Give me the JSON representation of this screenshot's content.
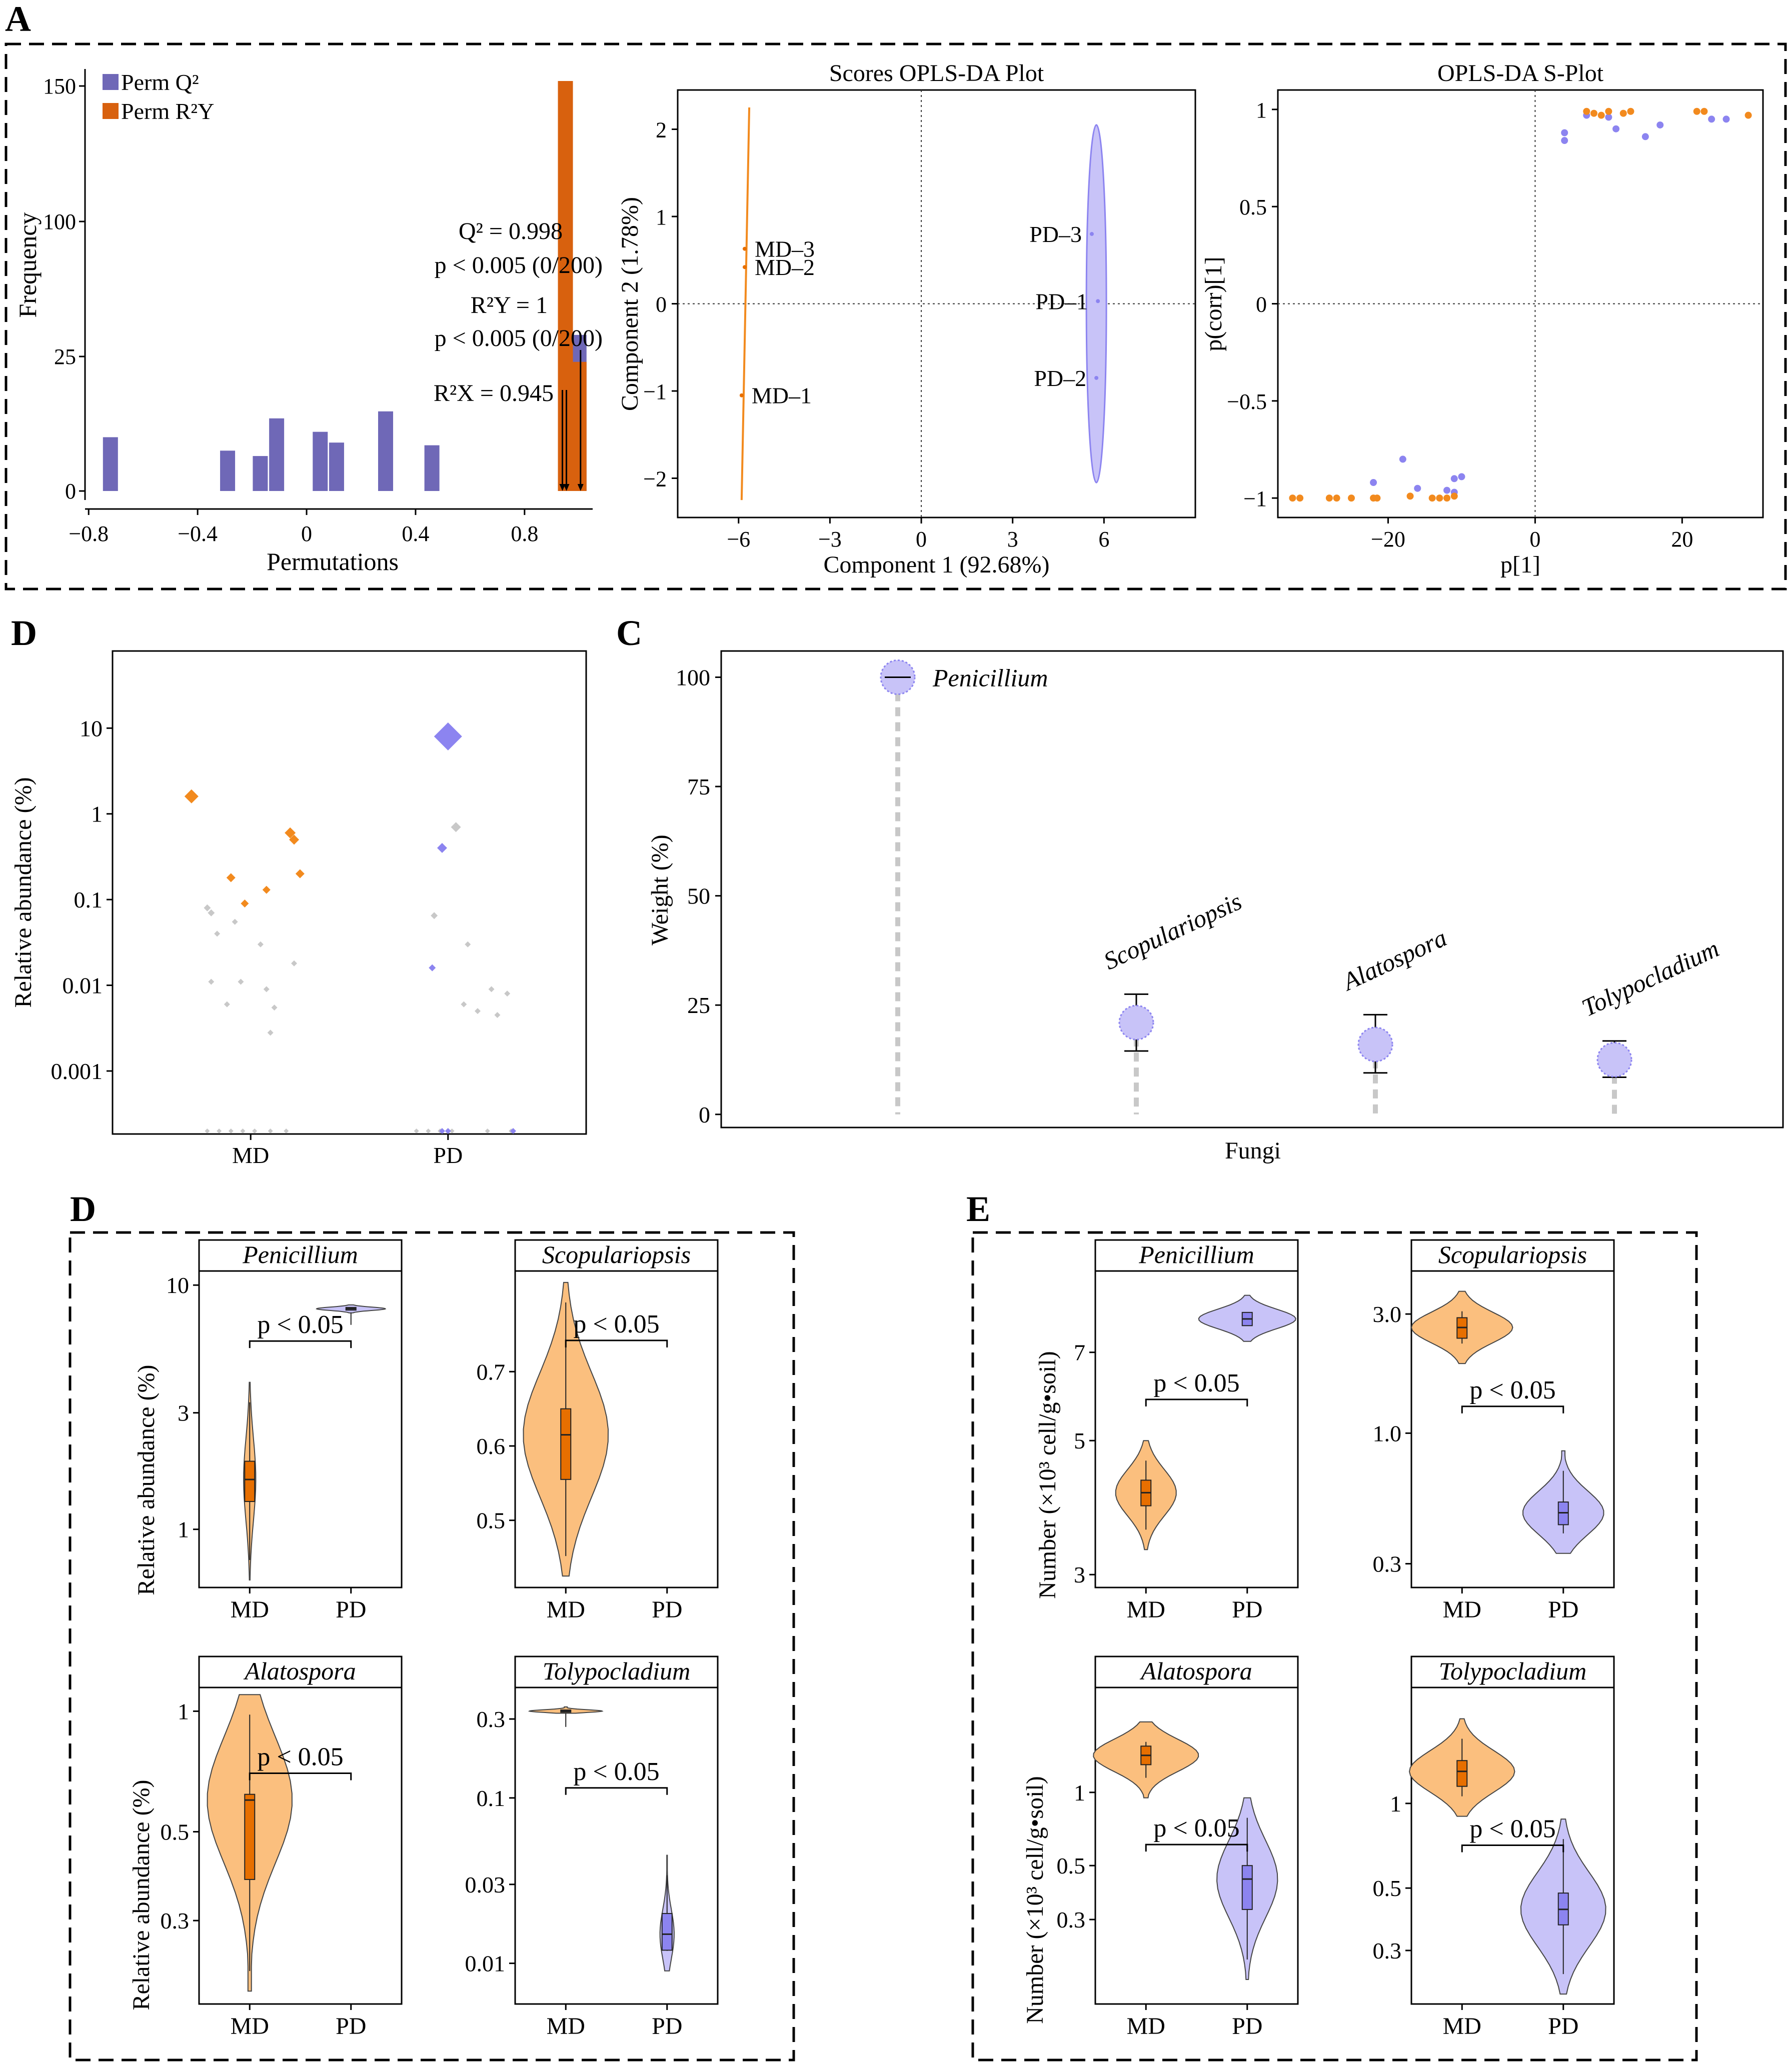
{
  "colors": {
    "md": "#F28A1E",
    "md_fill": "#FBBF7E",
    "md_dark": "#E76F00",
    "pd": "#8C84F0",
    "pd_fill": "#C8C3F8",
    "perm_q2": "#6F68B7",
    "perm_r2y": "#D8610E",
    "grey": "#C8C8C8"
  },
  "panel_labels": {
    "a": "A",
    "d_top": "D",
    "c": "C",
    "d_bottom": "D",
    "e": "E"
  },
  "chart_data": [
    {
      "id": "permutation-histogram",
      "type": "bar",
      "xlabel": "Permutations",
      "ylabel": "Frequency",
      "xlim": [
        -0.85,
        1.05
      ],
      "xticks": [
        "−0.8",
        "−0.4",
        "0",
        "0.4",
        "0.8"
      ],
      "xtick_values": [
        -0.8,
        -0.4,
        0,
        0.4,
        0.8
      ],
      "yticks": [
        "0",
        "25",
        "100",
        "150"
      ],
      "ytick_values": [
        0,
        25,
        100,
        150
      ],
      "legend": [
        "Perm Q²",
        "Perm R²Y"
      ],
      "q2_bars": [
        {
          "x": -0.72,
          "h": 10
        },
        {
          "x": -0.29,
          "h": 7.5
        },
        {
          "x": -0.17,
          "h": 6.5
        },
        {
          "x": -0.11,
          "h": 13.5
        },
        {
          "x": 0.05,
          "h": 11
        },
        {
          "x": 0.11,
          "h": 9
        },
        {
          "x": 0.29,
          "h": 14.8
        },
        {
          "x": 0.46,
          "h": 8.5
        },
        {
          "x": 1.0,
          "h": 37
        }
      ],
      "r2y_bars": [
        {
          "x": 0.95,
          "h": 152
        },
        {
          "x": 1.0,
          "h": 24
        }
      ],
      "annotations": [
        {
          "line1": "Q² = 0.998",
          "line2": "p < 0.005 (0/200)"
        },
        {
          "line1": "R²Y = 1",
          "line2": "p < 0.005 (0/200)"
        },
        {
          "line1": "R²X = 0.945"
        }
      ]
    },
    {
      "id": "opls-da-scores",
      "type": "scatter",
      "title": "Scores OPLS-DA Plot",
      "xlabel": "Component 1 (92.68%)",
      "ylabel": "Component 2 (1.78%)",
      "xlim": [
        -8.0,
        9.0
      ],
      "ylim": [
        -2.45,
        2.45
      ],
      "xticks": [
        "−6",
        "−3",
        "0",
        "3",
        "6"
      ],
      "xtick_values": [
        -6,
        -3,
        0,
        3,
        6
      ],
      "yticks": [
        "−2",
        "−1",
        "0",
        "1",
        "2"
      ],
      "ytick_values": [
        -2,
        -1,
        0,
        1,
        2
      ],
      "points": [
        {
          "label": "MD–3",
          "x": -5.8,
          "y": 0.63,
          "group": "MD"
        },
        {
          "label": "MD–2",
          "x": -5.8,
          "y": 0.42,
          "group": "MD"
        },
        {
          "label": "MD–1",
          "x": -5.9,
          "y": -1.05,
          "group": "MD"
        },
        {
          "label": "PD–3",
          "x": 5.6,
          "y": 0.8,
          "group": "PD"
        },
        {
          "label": "PD–1",
          "x": 5.8,
          "y": 0.03,
          "group": "PD"
        },
        {
          "label": "PD–2",
          "x": 5.75,
          "y": -0.85,
          "group": "PD"
        }
      ]
    },
    {
      "id": "opls-da-s-plot",
      "type": "scatter",
      "title": "OPLS-DA S-Plot",
      "xlabel": "p[1]",
      "ylabel": "p(corr)[1]",
      "xlim": [
        -35,
        31
      ],
      "ylim": [
        -1.1,
        1.1
      ],
      "xticks": [
        "−20",
        "0",
        "20"
      ],
      "xtick_values": [
        -20,
        0,
        20
      ],
      "yticks": [
        "−1",
        "−0.5",
        "0",
        "0.5",
        "1"
      ],
      "ytick_values": [
        -1,
        -0.5,
        0,
        0.5,
        1
      ],
      "orange_points": [
        [
          -33,
          -1
        ],
        [
          -32,
          -1
        ],
        [
          -28,
          -1
        ],
        [
          -27,
          -1
        ],
        [
          -25,
          -1
        ],
        [
          -22,
          -1
        ],
        [
          -21.5,
          -1
        ],
        [
          -17,
          -0.99
        ],
        [
          -14,
          -1
        ],
        [
          -13,
          -1
        ],
        [
          -12,
          -1
        ],
        [
          -11,
          -0.99
        ],
        [
          7,
          0.99
        ],
        [
          8,
          0.98
        ],
        [
          9,
          0.97
        ],
        [
          10,
          0.99
        ],
        [
          12,
          0.98
        ],
        [
          13,
          0.99
        ],
        [
          22,
          0.99
        ],
        [
          23,
          0.99
        ],
        [
          29,
          0.97
        ]
      ],
      "purple_points": [
        [
          -22,
          -0.92
        ],
        [
          -18,
          -0.8
        ],
        [
          -16,
          -0.95
        ],
        [
          -12,
          -0.96
        ],
        [
          -11,
          -0.9
        ],
        [
          -10,
          -0.89
        ],
        [
          -11,
          -0.97
        ],
        [
          4,
          0.84
        ],
        [
          4,
          0.88
        ],
        [
          7,
          0.97
        ],
        [
          10,
          0.96
        ],
        [
          11,
          0.9
        ],
        [
          15,
          0.86
        ],
        [
          17,
          0.92
        ],
        [
          24,
          0.95
        ],
        [
          26,
          0.95
        ]
      ]
    },
    {
      "id": "relative-abundance-scatter",
      "type": "scatter",
      "ylabel": "Relative abundance (%)",
      "categories": [
        "MD",
        "PD"
      ],
      "y_scale": "log10",
      "ylim_log": [
        -3.7,
        1.9
      ],
      "yticks": [
        "10",
        "1",
        "0.1",
        "0.01",
        "0.001"
      ],
      "ytick_values": [
        10,
        1,
        0.1,
        0.01,
        0.001
      ],
      "md_colored": [
        {
          "x": 0.7,
          "y": 1.6,
          "s": 14
        },
        {
          "x": 1.2,
          "y": 0.6,
          "s": 11
        },
        {
          "x": 1.22,
          "y": 0.5,
          "s": 10
        },
        {
          "x": 1.25,
          "y": 0.2,
          "s": 9
        },
        {
          "x": 0.9,
          "y": 0.18,
          "s": 9
        },
        {
          "x": 1.08,
          "y": 0.13,
          "s": 8
        },
        {
          "x": 0.97,
          "y": 0.09,
          "s": 8
        }
      ],
      "pd_colored": [
        {
          "x": 2.0,
          "y": 8.0,
          "s": 28
        },
        {
          "x": 1.97,
          "y": 0.4,
          "s": 10
        },
        {
          "x": 1.92,
          "y": 0.016,
          "s": 7
        }
      ],
      "grey_points": [
        [
          0.78,
          0.08,
          7
        ],
        [
          0.8,
          0.07,
          7
        ],
        [
          0.83,
          0.04,
          6
        ],
        [
          0.92,
          0.055,
          6
        ],
        [
          1.05,
          0.03,
          6
        ],
        [
          1.22,
          0.018,
          6
        ],
        [
          0.8,
          0.011,
          6
        ],
        [
          0.95,
          0.011,
          6
        ],
        [
          1.08,
          0.009,
          6
        ],
        [
          1.12,
          0.0055,
          6
        ],
        [
          1.1,
          0.0028,
          6
        ],
        [
          0.88,
          0.006,
          6
        ],
        [
          2.04,
          0.7,
          10
        ],
        [
          1.93,
          0.065,
          7
        ],
        [
          2.1,
          0.03,
          6
        ],
        [
          2.22,
          0.009,
          6
        ],
        [
          2.3,
          0.008,
          6
        ],
        [
          2.08,
          0.006,
          6
        ],
        [
          2.15,
          0.005,
          6
        ],
        [
          2.25,
          0.0045,
          6
        ]
      ],
      "baseline_points": [
        [
          0.78,
          0.0003
        ],
        [
          0.84,
          0.0003
        ],
        [
          0.9,
          0.0003
        ],
        [
          0.96,
          0.0003
        ],
        [
          1.02,
          0.0003
        ],
        [
          1.1,
          0.0003
        ],
        [
          1.18,
          0.0003
        ],
        [
          1.84,
          0.0003
        ],
        [
          1.9,
          0.0003
        ],
        [
          1.96,
          0.0003
        ],
        [
          2.02,
          0.0003
        ],
        [
          2.2,
          0.0003
        ],
        [
          2.32,
          0.0003
        ]
      ],
      "baseline_colored": [
        [
          1.97,
          0.0003,
          "pd"
        ],
        [
          2.0,
          0.0003,
          "pd"
        ],
        [
          2.33,
          0.0003,
          "pd"
        ]
      ]
    },
    {
      "id": "weight-lollipop",
      "type": "scatter",
      "xlabel": "Fungi",
      "ylabel": "Weight (%)",
      "ylim": [
        -3,
        106
      ],
      "yticks": [
        "0",
        "25",
        "50",
        "75",
        "100"
      ],
      "ytick_values": [
        0,
        25,
        50,
        75,
        100
      ],
      "items": [
        {
          "label": "Penicillium",
          "value": 100,
          "low": 100,
          "high": 100
        },
        {
          "label": "Scopulariopsis",
          "value": 21,
          "low": 14.5,
          "high": 27.5
        },
        {
          "label": "Alatospora",
          "value": 16,
          "low": 9.5,
          "high": 22.8
        },
        {
          "label": "Tolypocladium",
          "value": 12.5,
          "low": 8.5,
          "high": 16.8
        }
      ]
    },
    {
      "id": "violin-relative-abundance",
      "type": "bar",
      "ylabel": "Relative abundance (%)",
      "categories": [
        "MD",
        "PD"
      ],
      "panels": [
        {
          "title": "Penicillium",
          "scale": "log",
          "range": [
            0.6,
            11
          ],
          "ticks": [
            "10",
            "3",
            "1"
          ],
          "tick_values": [
            10,
            3,
            1
          ],
          "pval": "p < 0.05",
          "bracket_y": 5.9,
          "md": {
            "lo": 0.62,
            "q1": 1.3,
            "med": 1.6,
            "q3": 1.9,
            "hi": 4.0,
            "width": 0.06
          },
          "pd": {
            "lo": 7.7,
            "q1": 7.9,
            "med": 8.0,
            "q3": 8.1,
            "hi": 8.3,
            "width": 0.34
          }
        },
        {
          "title": "Scopulariopsis",
          "scale": "linear",
          "range": [
            0.415,
            0.83
          ],
          "ticks": [
            "0.7",
            "0.6",
            "0.5"
          ],
          "tick_values": [
            0.7,
            0.6,
            0.5
          ],
          "pval": "p < 0.05",
          "bracket_y": 0.742,
          "md": {
            "lo": 0.425,
            "q1": 0.555,
            "med": 0.615,
            "q3": 0.65,
            "hi": 0.82,
            "width": 0.42
          },
          "pd": null
        },
        {
          "title": "Alatospora",
          "scale": "log",
          "range": [
            0.19,
            1.12
          ],
          "ticks": [
            "1",
            "0.5",
            "0.3"
          ],
          "tick_values": [
            1,
            0.5,
            0.3
          ],
          "pval": "p < 0.05",
          "bracket_y": 0.7,
          "md": {
            "lo": 0.2,
            "q1": 0.38,
            "med": 0.6,
            "q3": 0.62,
            "hi": 1.1,
            "width": 0.42
          },
          "pd": null
        },
        {
          "title": "Tolypocladium",
          "scale": "log",
          "range": [
            0.006,
            0.44
          ],
          "ticks": [
            "0.3",
            "0.1",
            "0.03",
            "0.01"
          ],
          "tick_values": [
            0.3,
            0.1,
            0.03,
            0.01
          ],
          "pval": "p < 0.05",
          "bracket_y": 0.115,
          "md": {
            "lo": 0.325,
            "q1": 0.33,
            "med": 0.335,
            "q3": 0.34,
            "hi": 0.355,
            "width": 0.36
          },
          "pd": {
            "lo": 0.009,
            "q1": 0.012,
            "med": 0.015,
            "q3": 0.02,
            "hi": 0.045,
            "width": 0.07
          }
        }
      ]
    },
    {
      "id": "violin-number",
      "type": "bar",
      "ylabel": "Number (×10³ cell/g•soil)",
      "categories": [
        "MD",
        "PD"
      ],
      "panels": [
        {
          "title": "Penicillium",
          "scale": "log",
          "range": [
            2.9,
            9.4
          ],
          "ticks": [
            "7",
            "5",
            "3"
          ],
          "tick_values": [
            7,
            5,
            3
          ],
          "pval": "p < 0.05",
          "bracket_y": 5.85,
          "md": {
            "lo": 3.3,
            "q1": 3.9,
            "med": 4.1,
            "q3": 4.3,
            "hi": 5.0,
            "width": 0.3
          },
          "pd": {
            "lo": 7.3,
            "q1": 7.75,
            "med": 7.95,
            "q3": 8.15,
            "hi": 8.7,
            "width": 0.48
          }
        },
        {
          "title": "Scopulariopsis",
          "scale": "log",
          "range": [
            0.25,
            4.3
          ],
          "ticks": [
            "3.0",
            "1.0",
            "0.3"
          ],
          "tick_values": [
            3.0,
            1.0,
            0.3
          ],
          "pval": "p < 0.05",
          "bracket_y": 1.28,
          "md": {
            "lo": 1.9,
            "q1": 2.4,
            "med": 2.65,
            "q3": 2.9,
            "hi": 3.7,
            "width": 0.5
          },
          "pd": {
            "lo": 0.33,
            "q1": 0.43,
            "med": 0.48,
            "q3": 0.53,
            "hi": 0.85,
            "width": 0.4
          }
        },
        {
          "title": "Alatospora",
          "scale": "log",
          "range": [
            0.14,
            2.6
          ],
          "ticks": [
            "1",
            "0.5",
            "0.3"
          ],
          "tick_values": [
            1,
            0.5,
            0.3
          ],
          "pval": "p < 0.05",
          "bracket_y": 0.61,
          "md": {
            "lo": 0.95,
            "q1": 1.3,
            "med": 1.42,
            "q3": 1.55,
            "hi": 1.95,
            "width": 0.52
          },
          "pd": {
            "lo": 0.17,
            "q1": 0.33,
            "med": 0.44,
            "q3": 0.5,
            "hi": 0.95,
            "width": 0.3
          }
        },
        {
          "title": "Tolypocladium",
          "scale": "log",
          "range": [
            0.2,
            2.5
          ],
          "ticks": [
            "1",
            "0.5",
            "0.3"
          ],
          "tick_values": [
            1,
            0.5,
            0.3
          ],
          "pval": "p < 0.05",
          "bracket_y": 0.71,
          "md": {
            "lo": 0.9,
            "q1": 1.15,
            "med": 1.3,
            "q3": 1.42,
            "hi": 2.0,
            "width": 0.52
          },
          "pd": {
            "lo": 0.21,
            "q1": 0.37,
            "med": 0.42,
            "q3": 0.48,
            "hi": 0.88,
            "width": 0.42
          }
        }
      ]
    }
  ]
}
